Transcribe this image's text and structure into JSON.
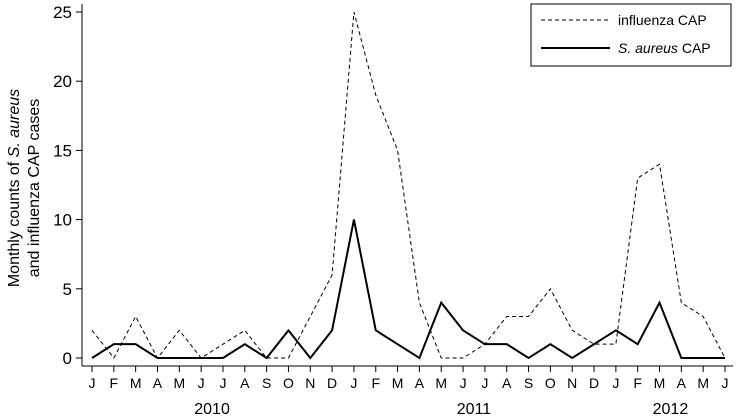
{
  "chart_data": {
    "type": "line",
    "categories": [
      "J",
      "F",
      "M",
      "A",
      "M",
      "J",
      "J",
      "A",
      "S",
      "O",
      "N",
      "D",
      "J",
      "F",
      "M",
      "A",
      "M",
      "J",
      "J",
      "A",
      "S",
      "O",
      "N",
      "D",
      "J",
      "F",
      "M",
      "A",
      "M",
      "J"
    ],
    "year_labels": [
      {
        "label": "2010",
        "start_index": 0,
        "end_index": 11
      },
      {
        "label": "2011",
        "start_index": 12,
        "end_index": 23
      },
      {
        "label": "2012",
        "start_index": 24,
        "end_index": 29
      }
    ],
    "series": [
      {
        "name": "influenza CAP",
        "style": "dashed",
        "values": [
          2,
          0,
          3,
          0,
          2,
          0,
          1,
          2,
          0,
          0,
          3,
          6,
          25,
          19,
          15,
          4,
          0,
          0,
          1,
          3,
          3,
          5,
          2,
          1,
          1,
          13,
          14,
          4,
          3,
          0
        ]
      },
      {
        "name": "S. aureus CAP",
        "name_italic": "S. aureus",
        "name_rest": " CAP",
        "style": "solid",
        "values": [
          0,
          1,
          1,
          0,
          0,
          0,
          0,
          1,
          0,
          2,
          0,
          2,
          10,
          2,
          1,
          0,
          4,
          2,
          1,
          1,
          0,
          1,
          0,
          1,
          2,
          1,
          4,
          0,
          0,
          0
        ]
      }
    ],
    "ylabel_line1_prefix": "Monthly counts of ",
    "ylabel_line1_italic": "S. aureus",
    "ylabel_line2": "and influenza CAP cases",
    "yticks": [
      "0",
      "5",
      "10",
      "15",
      "20",
      "25"
    ],
    "ylim": [
      0,
      25
    ],
    "grid": false,
    "legend_position": "top-right",
    "colors": {
      "line": "#000000",
      "axis": "#000000",
      "background": "#ffffff"
    }
  }
}
